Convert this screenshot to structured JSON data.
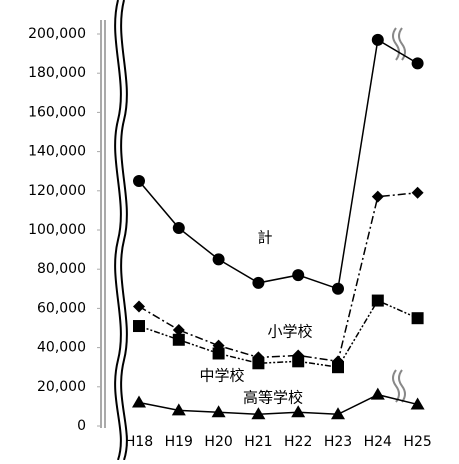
{
  "chart_data": {
    "type": "line",
    "categories": [
      "H18",
      "H19",
      "H20",
      "H21",
      "H22",
      "H23",
      "H24",
      "H25"
    ],
    "series": [
      {
        "name": "計",
        "color": "#000000",
        "marker": "circle",
        "dash": "solid",
        "values": [
          125000,
          101000,
          85000,
          73000,
          77000,
          70000,
          197000,
          185000
        ]
      },
      {
        "name": "小学校",
        "color": "#000000",
        "marker": "diamond",
        "dash": "dash-dot",
        "values": [
          61000,
          49000,
          41000,
          35000,
          36000,
          33000,
          117000,
          119000
        ]
      },
      {
        "name": "中学校",
        "color": "#000000",
        "marker": "square",
        "dash": "dash-dot-dot",
        "values": [
          51000,
          44000,
          37000,
          32000,
          33000,
          30000,
          64000,
          55000
        ]
      },
      {
        "name": "高等学校",
        "color": "#000000",
        "marker": "triangle",
        "dash": "solid",
        "values": [
          12000,
          8000,
          7000,
          6000,
          7000,
          6000,
          16000,
          11000
        ]
      }
    ],
    "ylim": [
      0,
      200000
    ],
    "yticks": [
      0,
      {
        "value": 20000,
        "label": "20,000"
      },
      {
        "value": 40000,
        "label": "40,000"
      },
      {
        "value": 60000,
        "label": "60,000"
      },
      {
        "value": 80000,
        "label": "80,000"
      },
      {
        "value": 100000,
        "label": "100,000"
      },
      {
        "value": 120000,
        "label": "120,000"
      },
      {
        "value": 140000,
        "label": "140,000"
      },
      {
        "value": 160000,
        "label": "160,000"
      },
      {
        "value": 180000,
        "label": "180,000"
      },
      {
        "value": 200000,
        "label": "200,000"
      }
    ],
    "grid": false
  }
}
